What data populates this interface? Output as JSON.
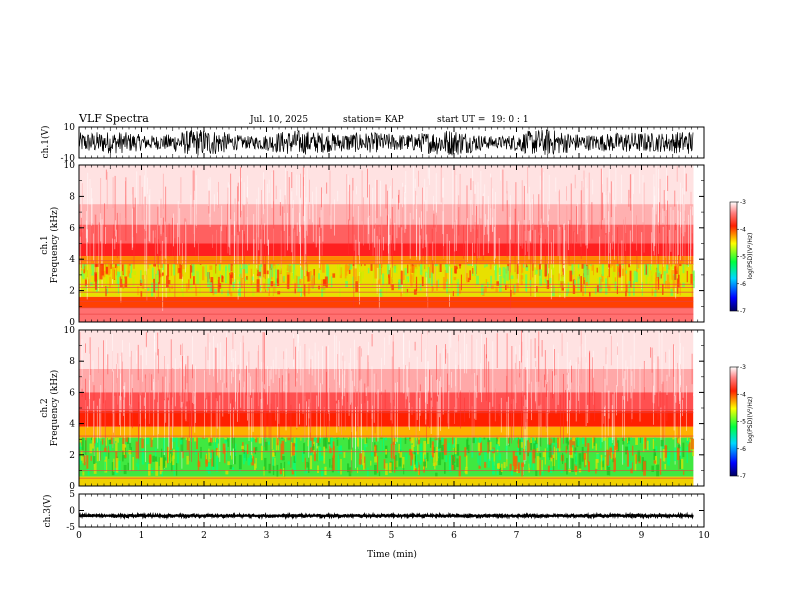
{
  "header": {
    "title": "VLF Spectra",
    "date": "Jul. 10, 2025",
    "station": "station= KAP",
    "start_label": "start UT =",
    "start_value": "19: 0 : 1"
  },
  "chart_data": [
    {
      "type": "line",
      "name": "ch.1 waveform",
      "ylabel": "ch.1(V)",
      "ylim": [
        -10,
        10
      ],
      "yticks": [
        "10",
        "-10"
      ],
      "x_range_min": [
        0,
        9.83
      ],
      "description_color": "#000000"
    },
    {
      "type": "heatmap",
      "name": "ch.1 spectrogram",
      "ylabel_line1": "ch.1",
      "ylabel_line2": "Frequency (kHz)",
      "ylim": [
        0,
        10
      ],
      "yticks": [
        "0",
        "2",
        "4",
        "6",
        "8",
        "10"
      ],
      "xlim": [
        0,
        10
      ],
      "data_extent_min": 9.83,
      "colorbar": {
        "label": "log(PSD)(V²/Hz)",
        "ticks": [
          "-3",
          "-4",
          "-5",
          "-6",
          "-7"
        ],
        "range": [
          -7,
          -3
        ]
      }
    },
    {
      "type": "heatmap",
      "name": "ch.2 spectrogram",
      "ylabel_line1": "ch.2",
      "ylabel_line2": "Frequency (kHz)",
      "ylim": [
        0,
        10
      ],
      "yticks": [
        "0",
        "2",
        "4",
        "6",
        "8",
        "10"
      ],
      "xlim": [
        0,
        10
      ],
      "data_extent_min": 9.83,
      "colorbar": {
        "label": "log(PSD)(V²/Hz)",
        "ticks": [
          "-3",
          "-4",
          "-5",
          "-6",
          "-7"
        ],
        "range": [
          -7,
          -3
        ]
      }
    },
    {
      "type": "line",
      "name": "ch.3 waveform",
      "ylabel": "ch.3(V)",
      "ylim": [
        -5,
        5
      ],
      "yticks": [
        "5",
        "0",
        "-5"
      ],
      "xlabel": "Time (min)",
      "xlim": [
        0,
        10
      ],
      "xticks": [
        "0",
        "1",
        "2",
        "3",
        "4",
        "5",
        "6",
        "7",
        "8",
        "9",
        "10"
      ]
    }
  ]
}
